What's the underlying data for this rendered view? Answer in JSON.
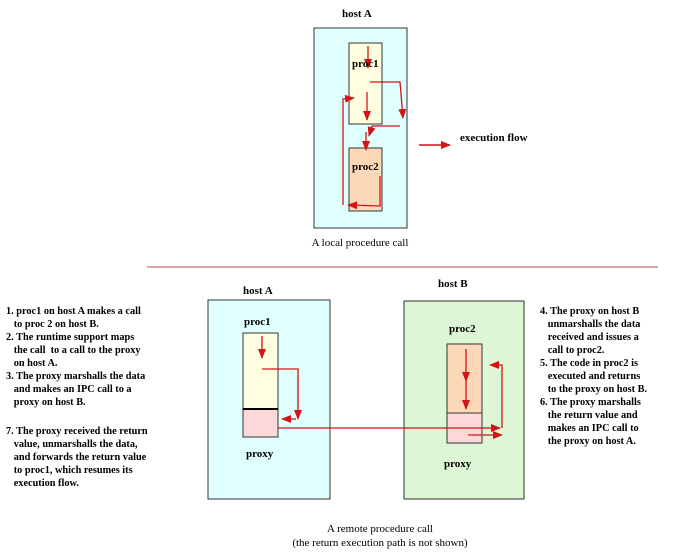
{
  "local": {
    "host_label": "host A",
    "proc1_label": "proc1",
    "proc2_label": "proc2",
    "legend_label": "execution flow",
    "caption": "A local procedure call"
  },
  "remote": {
    "hostA_label": "host A",
    "hostB_label": "host B",
    "proc1_label": "proc1",
    "proc2_label": "proc2",
    "proxyA_label": "proxy",
    "proxyB_label": "proxy",
    "caption_line1": "A remote procedure call",
    "caption_line2": "(the return execution path is not shown)"
  },
  "notes_left": [
    "1. proc1 on host A makes a call",
    "   to proc 2 on host B.",
    "2. The runtime support maps",
    "   the call  to a call to the proxy",
    "   on host A.",
    "3. The proxy marshalls the data",
    "   and makes an IPC call to a",
    "   proxy on host B."
  ],
  "notes_left_2": [
    "7. The proxy received the return",
    "   value, unmarshalls the data,",
    "   and forwards the return value",
    "   to proc1, which resumes its",
    "   execution flow."
  ],
  "notes_right": [
    "4. The proxy on host B",
    "   unmarshalls the data",
    "   received and issues a",
    "   call to proc2.",
    "5. The code in proc2 is",
    "   executed and returns",
    "   to the proxy on host B.",
    "6. The proxy marshalls",
    "   the return value and",
    "   makes an IPC call to",
    "   the proxy on host A."
  ],
  "colors": {
    "hostA_fill": "#e0ffff",
    "hostB_fill": "#ddf7d6",
    "proc1_fill": "#ffffe0",
    "proc2_fill": "#fcd8b8",
    "proxy_fill": "#fcd8d8",
    "arrow": "#d41414",
    "divider": "#b44444"
  }
}
